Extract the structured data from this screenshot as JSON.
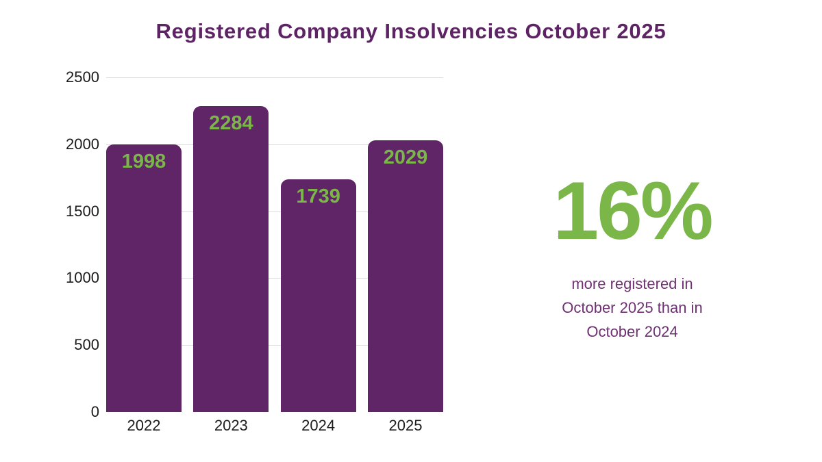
{
  "title": "Registered Company Insolvencies October 2025",
  "colors": {
    "background": "#ffffff",
    "title": "#5e2365",
    "bar": "#5f2566",
    "value_label": "#7ab648",
    "gridline": "#dcdcdc",
    "axis_text": "#1c1c1c",
    "stat": "#7ab648",
    "stat_text": "#6f3173"
  },
  "chart_data": {
    "type": "bar",
    "title": "Registered Company Insolvencies October 2025",
    "categories": [
      "2022",
      "2023",
      "2024",
      "2025"
    ],
    "values": [
      1998,
      2284,
      1739,
      2029
    ],
    "bar_labels": [
      "1998",
      "2284",
      "1739",
      "2029"
    ],
    "xlabel": "",
    "ylabel": "",
    "ylim": [
      0,
      2500
    ],
    "yticks": [
      0,
      500,
      1000,
      1500,
      2000,
      2500
    ],
    "grid": true,
    "legend": false,
    "bar_color": "#5f2566",
    "bar_label_color": "#7ab648"
  },
  "stat": {
    "value": "16%",
    "description_lines": [
      "more registered in",
      "October 2025 than in",
      "October 2024"
    ]
  }
}
